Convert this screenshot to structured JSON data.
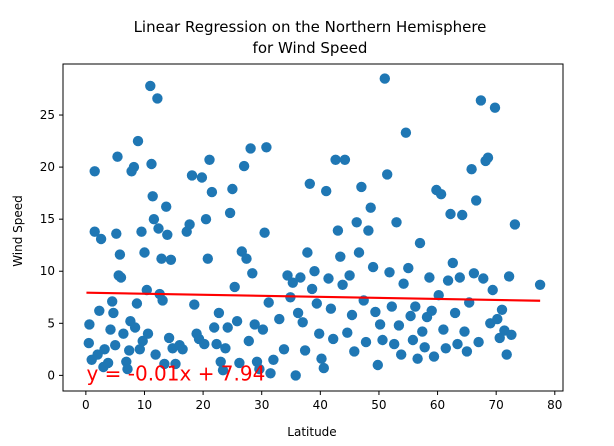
{
  "chart_data": {
    "type": "scatter",
    "title_lines": [
      "Linear Regression on the Northern Hemisphere",
      "for Wind Speed"
    ],
    "xlabel": "Latitude",
    "ylabel": "Wind Speed",
    "xlim": [
      -3.9,
      81.4
    ],
    "ylim": [
      -1.5,
      29.9
    ],
    "xticks": [
      0,
      10,
      20,
      30,
      40,
      50,
      60,
      70,
      80
    ],
    "yticks": [
      0,
      5,
      10,
      15,
      20,
      25
    ],
    "grid": false,
    "point_color": "#1f77b4",
    "line_color": "#ff0000",
    "equation_text": "y = -0.01x + 7.94",
    "equation_anchor": [
      0.1,
      -0.5
    ],
    "regression": {
      "slope": -0.01,
      "intercept": 7.94,
      "x_range": [
        0.1,
        77.5
      ]
    },
    "points": [
      [
        0.6,
        4.9
      ],
      [
        0.5,
        3.1
      ],
      [
        1.0,
        1.5
      ],
      [
        1.5,
        19.6
      ],
      [
        1.5,
        13.8
      ],
      [
        2.0,
        2.0
      ],
      [
        2.3,
        6.2
      ],
      [
        2.6,
        13.1
      ],
      [
        3.0,
        0.8
      ],
      [
        3.2,
        2.5
      ],
      [
        3.8,
        1.2
      ],
      [
        4.2,
        4.4
      ],
      [
        4.5,
        7.1
      ],
      [
        4.7,
        6.0
      ],
      [
        5.0,
        2.9
      ],
      [
        5.2,
        13.6
      ],
      [
        5.4,
        21.0
      ],
      [
        5.6,
        9.6
      ],
      [
        5.8,
        11.6
      ],
      [
        6.0,
        9.4
      ],
      [
        6.4,
        4.0
      ],
      [
        6.9,
        1.3
      ],
      [
        7.1,
        0.6
      ],
      [
        7.4,
        2.4
      ],
      [
        7.6,
        5.2
      ],
      [
        7.8,
        19.6
      ],
      [
        8.2,
        20.0
      ],
      [
        8.4,
        4.6
      ],
      [
        8.7,
        6.9
      ],
      [
        8.9,
        22.5
      ],
      [
        9.2,
        2.5
      ],
      [
        9.5,
        13.8
      ],
      [
        9.7,
        3.3
      ],
      [
        10.0,
        11.8
      ],
      [
        10.4,
        8.2
      ],
      [
        10.6,
        4.0
      ],
      [
        11.0,
        27.8
      ],
      [
        11.2,
        20.3
      ],
      [
        11.4,
        17.2
      ],
      [
        11.6,
        15.0
      ],
      [
        11.9,
        2.0
      ],
      [
        12.2,
        26.6
      ],
      [
        12.4,
        14.1
      ],
      [
        12.6,
        7.8
      ],
      [
        12.9,
        11.2
      ],
      [
        13.1,
        7.2
      ],
      [
        13.4,
        1.1
      ],
      [
        13.7,
        16.2
      ],
      [
        13.9,
        13.5
      ],
      [
        14.2,
        3.6
      ],
      [
        14.5,
        11.1
      ],
      [
        14.8,
        2.6
      ],
      [
        15.3,
        1.1
      ],
      [
        16.0,
        2.9
      ],
      [
        16.5,
        2.5
      ],
      [
        17.2,
        13.8
      ],
      [
        17.7,
        14.5
      ],
      [
        18.1,
        19.2
      ],
      [
        18.5,
        6.8
      ],
      [
        18.9,
        4.0
      ],
      [
        19.3,
        3.5
      ],
      [
        19.8,
        19.0
      ],
      [
        20.2,
        3.0
      ],
      [
        20.5,
        15.0
      ],
      [
        20.8,
        11.2
      ],
      [
        21.1,
        20.7
      ],
      [
        21.5,
        17.6
      ],
      [
        21.9,
        4.6
      ],
      [
        22.3,
        3.0
      ],
      [
        22.7,
        6.0
      ],
      [
        23.0,
        1.3
      ],
      [
        23.4,
        0.5
      ],
      [
        23.8,
        2.6
      ],
      [
        24.2,
        4.6
      ],
      [
        24.6,
        15.6
      ],
      [
        25.0,
        17.9
      ],
      [
        25.4,
        8.5
      ],
      [
        25.8,
        5.2
      ],
      [
        26.2,
        1.2
      ],
      [
        26.6,
        11.9
      ],
      [
        27.0,
        20.1
      ],
      [
        27.4,
        11.2
      ],
      [
        27.8,
        3.3
      ],
      [
        28.1,
        21.8
      ],
      [
        28.4,
        9.8
      ],
      [
        28.8,
        4.9
      ],
      [
        29.2,
        1.3
      ],
      [
        29.6,
        0.6
      ],
      [
        30.2,
        4.4
      ],
      [
        30.5,
        13.7
      ],
      [
        30.8,
        21.9
      ],
      [
        31.2,
        7.0
      ],
      [
        31.5,
        0.2
      ],
      [
        32.0,
        1.5
      ],
      [
        33.0,
        5.4
      ],
      [
        33.8,
        2.5
      ],
      [
        34.4,
        9.6
      ],
      [
        34.9,
        7.5
      ],
      [
        35.3,
        8.9
      ],
      [
        35.8,
        0.0
      ],
      [
        36.2,
        6.0
      ],
      [
        36.6,
        9.4
      ],
      [
        37.0,
        5.1
      ],
      [
        37.4,
        2.4
      ],
      [
        37.8,
        11.8
      ],
      [
        38.2,
        18.4
      ],
      [
        38.6,
        8.3
      ],
      [
        39.0,
        10.0
      ],
      [
        39.4,
        6.9
      ],
      [
        39.8,
        4.0
      ],
      [
        40.2,
        1.6
      ],
      [
        40.6,
        0.7
      ],
      [
        41.0,
        17.7
      ],
      [
        41.4,
        9.3
      ],
      [
        41.8,
        6.4
      ],
      [
        42.2,
        3.5
      ],
      [
        42.6,
        20.7
      ],
      [
        43.0,
        13.9
      ],
      [
        43.4,
        11.4
      ],
      [
        43.8,
        8.7
      ],
      [
        44.2,
        20.7
      ],
      [
        44.6,
        4.1
      ],
      [
        45.0,
        9.6
      ],
      [
        45.4,
        5.8
      ],
      [
        45.8,
        2.3
      ],
      [
        46.2,
        14.7
      ],
      [
        46.6,
        11.8
      ],
      [
        47.0,
        18.1
      ],
      [
        47.4,
        7.2
      ],
      [
        47.8,
        3.2
      ],
      [
        48.2,
        13.9
      ],
      [
        48.6,
        16.1
      ],
      [
        49.0,
        10.4
      ],
      [
        49.4,
        6.1
      ],
      [
        49.8,
        1.0
      ],
      [
        50.2,
        4.9
      ],
      [
        50.6,
        3.4
      ],
      [
        51.0,
        28.5
      ],
      [
        51.4,
        19.3
      ],
      [
        51.8,
        9.9
      ],
      [
        52.2,
        6.6
      ],
      [
        52.6,
        3.0
      ],
      [
        53.0,
        14.7
      ],
      [
        53.4,
        4.8
      ],
      [
        53.8,
        2.0
      ],
      [
        54.2,
        8.8
      ],
      [
        54.6,
        23.3
      ],
      [
        55.0,
        10.3
      ],
      [
        55.4,
        5.7
      ],
      [
        55.8,
        3.4
      ],
      [
        56.2,
        6.6
      ],
      [
        56.6,
        1.6
      ],
      [
        57.0,
        12.7
      ],
      [
        57.4,
        4.2
      ],
      [
        57.8,
        2.7
      ],
      [
        58.2,
        5.6
      ],
      [
        58.6,
        9.4
      ],
      [
        59.0,
        6.2
      ],
      [
        59.4,
        1.8
      ],
      [
        59.8,
        17.8
      ],
      [
        60.2,
        7.7
      ],
      [
        60.6,
        17.4
      ],
      [
        61.0,
        4.4
      ],
      [
        61.4,
        2.6
      ],
      [
        61.8,
        9.1
      ],
      [
        62.2,
        15.5
      ],
      [
        62.6,
        10.8
      ],
      [
        63.0,
        6.0
      ],
      [
        63.4,
        3.0
      ],
      [
        63.8,
        9.4
      ],
      [
        64.2,
        15.4
      ],
      [
        64.6,
        4.2
      ],
      [
        65.0,
        2.3
      ],
      [
        65.4,
        7.0
      ],
      [
        65.8,
        19.8
      ],
      [
        66.2,
        9.8
      ],
      [
        66.6,
        16.8
      ],
      [
        67.0,
        3.2
      ],
      [
        67.4,
        26.4
      ],
      [
        67.8,
        9.3
      ],
      [
        68.2,
        20.6
      ],
      [
        68.6,
        20.9
      ],
      [
        69.0,
        5.0
      ],
      [
        69.4,
        8.2
      ],
      [
        69.8,
        25.7
      ],
      [
        70.2,
        5.4
      ],
      [
        70.6,
        3.6
      ],
      [
        71.0,
        6.3
      ],
      [
        71.4,
        4.3
      ],
      [
        71.8,
        2.0
      ],
      [
        72.2,
        9.5
      ],
      [
        72.6,
        3.9
      ],
      [
        73.2,
        14.5
      ],
      [
        77.5,
        8.7
      ]
    ]
  }
}
